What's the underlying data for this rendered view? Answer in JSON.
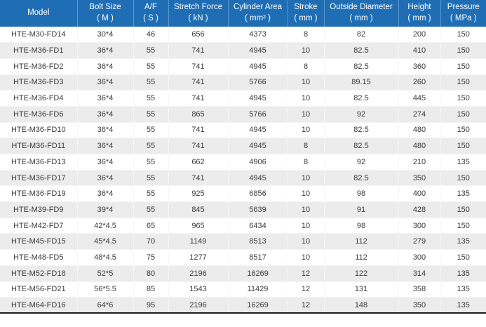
{
  "colors": {
    "header_bg": "#1f6eb5",
    "header_text": "#ffffff",
    "row_bg": "#ffffff",
    "row_alt_bg": "#ececec",
    "body_text": "#3a3a3a",
    "bottom_border": "#1c1c1c"
  },
  "table": {
    "columns": [
      {
        "label": "Model",
        "unit": ""
      },
      {
        "label": "Bolt Size",
        "unit": "( M )"
      },
      {
        "label": "A/F",
        "unit": "( S )"
      },
      {
        "label": "Stretch Force",
        "unit": "( kN )"
      },
      {
        "label": "Cylinder Area",
        "unit": "( mm² )"
      },
      {
        "label": "Stroke",
        "unit": "( mm )"
      },
      {
        "label": "Outside Diameter",
        "unit": "( mm )"
      },
      {
        "label": "Height",
        "unit": "( mm )"
      },
      {
        "label": "Pressure",
        "unit": "( MPa )"
      }
    ],
    "rows": [
      [
        "HTE-M30-FD14",
        "30*4",
        "46",
        "656",
        "4373",
        "8",
        "82",
        "200",
        "150"
      ],
      [
        "HTE-M36-FD1",
        "36*4",
        "55",
        "741",
        "4945",
        "10",
        "82.5",
        "410",
        "150"
      ],
      [
        "HTE-M36-FD2",
        "36*4",
        "55",
        "741",
        "4945",
        "8",
        "82.5",
        "360",
        "150"
      ],
      [
        "HTE-M36-FD3",
        "36*4",
        "55",
        "741",
        "5766",
        "10",
        "89.15",
        "260",
        "150"
      ],
      [
        "HTE-M36-FD4",
        "36*4",
        "55",
        "741",
        "4945",
        "10",
        "82.5",
        "445",
        "150"
      ],
      [
        "HTE-M36-FD6",
        "36*4",
        "55",
        "865",
        "5766",
        "10",
        "92",
        "274",
        "150"
      ],
      [
        "HTE-M36-FD10",
        "36*4",
        "55",
        "741",
        "4945",
        "10",
        "82.5",
        "480",
        "150"
      ],
      [
        "HTE-M36-FD11",
        "36*4",
        "55",
        "741",
        "4945",
        "8",
        "82.5",
        "480",
        "150"
      ],
      [
        "HTE-M36-FD13",
        "36*4",
        "55",
        "662",
        "4906",
        "8",
        "92",
        "210",
        "135"
      ],
      [
        "HTE-M36-FD17",
        "36*4",
        "55",
        "741",
        "4945",
        "10",
        "82.5",
        "350",
        "150"
      ],
      [
        "HTE-M36-FD19",
        "36*4",
        "55",
        "925",
        "6856",
        "10",
        "98",
        "400",
        "135"
      ],
      [
        "HTE-M39-FD9",
        "39*4",
        "55",
        "845",
        "5639",
        "10",
        "91",
        "428",
        "150"
      ],
      [
        "HTE-M42-FD7",
        "42*4.5",
        "65",
        "965",
        "6434",
        "10",
        "98",
        "300",
        "150"
      ],
      [
        "HTE-M45-FD15",
        "45*4.5",
        "70",
        "1149",
        "8513",
        "10",
        "112",
        "279",
        "135"
      ],
      [
        "HTE-M48-FD5",
        "48*4.5",
        "75",
        "1277",
        "8517",
        "10",
        "112",
        "300",
        "150"
      ],
      [
        "HTE-M52-FD18",
        "52*5",
        "80",
        "2196",
        "16269",
        "12",
        "122",
        "314",
        "135"
      ],
      [
        "HTE-M56-FD21",
        "56*5.5",
        "85",
        "1543",
        "11429",
        "12",
        "131",
        "358",
        "135"
      ],
      [
        "HTE-M64-FD16",
        "64*6",
        "95",
        "2196",
        "16269",
        "12",
        "148",
        "350",
        "135"
      ]
    ]
  }
}
